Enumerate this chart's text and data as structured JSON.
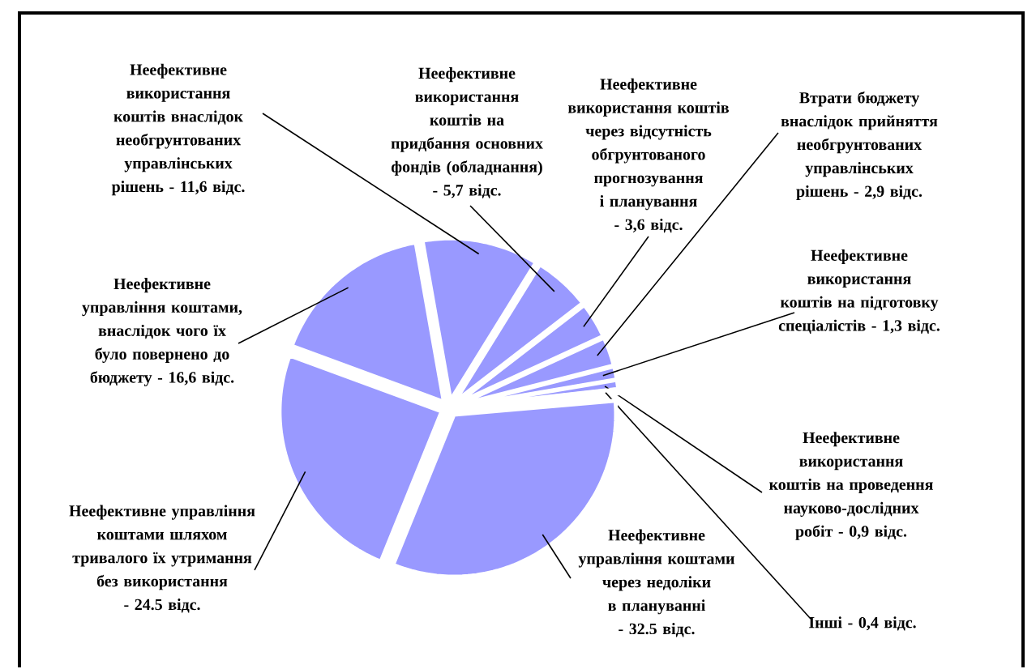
{
  "chart_data": {
    "type": "pie",
    "categories": [
      "Неефективне використання коштів внаслідок необгрунтованих управлінських рішень - 11,6 відс.",
      "Неефективне використання коштів на придбання основних фондів (обладнання) - 5,7 відс.",
      "Неефективне використання коштів через відсутність обгрунтованого прогнозування і планування - 3,6 відс.",
      "Втрати бюджету внаслідок прийняття необгрунтованих управлінських рішень - 2,9 відс.",
      "Неефективне використання коштів на підготовку спеціалістів - 1,3 відс.",
      "Неефективне використання коштів на проведення науково-дослідних робіт - 0,9 відс.",
      "Інші - 0,4 відс.",
      "Неефективне управління коштами через недоліки в плануванні - 32.5 відс.",
      "Неефективне управління коштами шляхом тривалого їх утримання без використання - 24.5 відс.",
      "Неефективне управління коштами, внаслідок чого їх було повернено до бюджету - 16,6 відс."
    ],
    "values": [
      11.6,
      5.7,
      3.6,
      2.9,
      1.3,
      0.9,
      0.4,
      32.5,
      24.5,
      16.6
    ],
    "colors": [
      "#9999ff",
      "#9999ff",
      "#9999ff",
      "#9999ff",
      "#9999ff",
      "#9999ff",
      "#9999ff",
      "#9999ff",
      "#9999ff",
      "#9999ff"
    ]
  }
}
